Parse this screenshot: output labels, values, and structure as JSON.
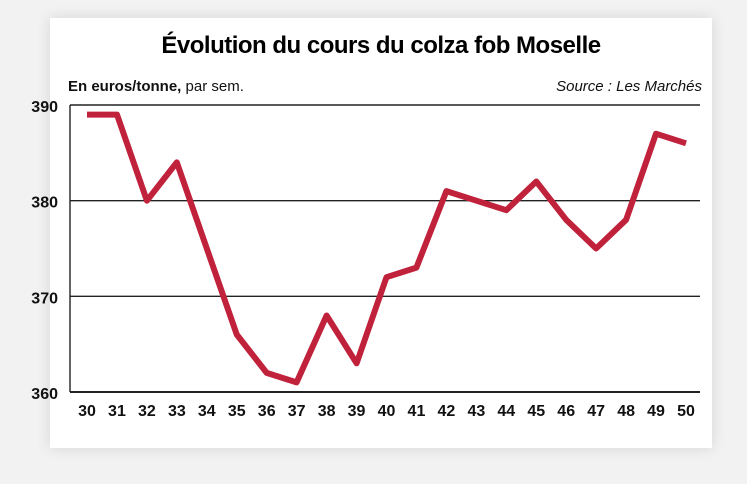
{
  "colors": {
    "accent": "#c0223b",
    "line": "#c0223b",
    "grid": "#222222",
    "text": "#111111"
  },
  "chart_data": {
    "type": "line",
    "title": "Évolution du cours du colza fob Moselle",
    "unit_bold": "En euros/tonne,",
    "unit_rest": " par sem.",
    "source": "Source : Les Marchés",
    "x": [
      30,
      31,
      32,
      33,
      34,
      35,
      36,
      37,
      38,
      39,
      40,
      41,
      42,
      43,
      44,
      45,
      46,
      47,
      48,
      49,
      50
    ],
    "series": [
      {
        "values": [
          389,
          389,
          380,
          384,
          375,
          366,
          362,
          361,
          368,
          363,
          372,
          373,
          381,
          380,
          379,
          382,
          378,
          375,
          378,
          387,
          386
        ]
      }
    ],
    "y_ticks": [
      360,
      370,
      380,
      390
    ],
    "ylim": [
      360,
      390
    ],
    "grid": "horizontal"
  }
}
